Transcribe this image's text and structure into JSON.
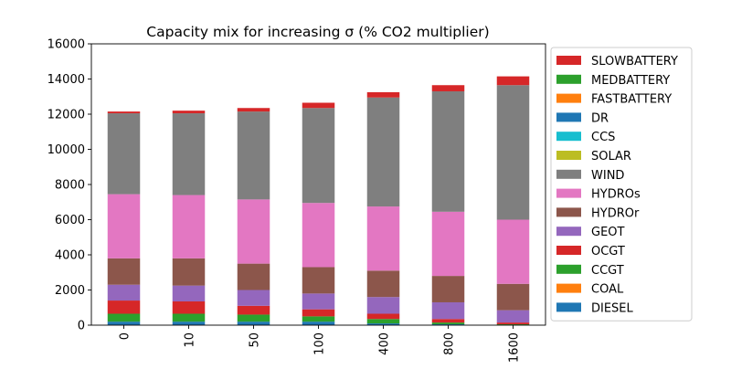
{
  "chart_data": {
    "type": "bar",
    "stacked": true,
    "title": "Capacity mix for increasing σ (% CO2 multiplier)",
    "xlabel": "",
    "ylabel": "",
    "categories": [
      "0",
      "10",
      "50",
      "100",
      "400",
      "800",
      "1600"
    ],
    "x_tick_rotation": "vertical",
    "ylim": [
      0,
      16000
    ],
    "yticks": [
      0,
      2000,
      4000,
      6000,
      8000,
      10000,
      12000,
      14000,
      16000
    ],
    "grid": false,
    "legend_position": "outside-right",
    "series": [
      {
        "name": "DIESEL",
        "color": "#1f77b4",
        "values": [
          200,
          200,
          200,
          200,
          100,
          50,
          0
        ]
      },
      {
        "name": "COAL",
        "color": "#ff7f0e",
        "values": [
          0,
          0,
          0,
          0,
          0,
          0,
          0
        ]
      },
      {
        "name": "CCGT",
        "color": "#2ca02c",
        "values": [
          450,
          450,
          400,
          300,
          250,
          100,
          50
        ]
      },
      {
        "name": "OCGT",
        "color": "#d62728",
        "values": [
          750,
          700,
          500,
          400,
          300,
          200,
          100
        ]
      },
      {
        "name": "GEOT",
        "color": "#9467bd",
        "values": [
          900,
          900,
          900,
          900,
          950,
          950,
          700
        ]
      },
      {
        "name": "HYDROr",
        "color": "#8c564b",
        "values": [
          1500,
          1550,
          1500,
          1500,
          1500,
          1500,
          1500
        ]
      },
      {
        "name": "HYDROs",
        "color": "#e377c2",
        "values": [
          3650,
          3600,
          3650,
          3650,
          3650,
          3650,
          3650
        ]
      },
      {
        "name": "WIND",
        "color": "#7f7f7f",
        "values": [
          4600,
          4650,
          5000,
          5400,
          6200,
          6850,
          7650
        ]
      },
      {
        "name": "SOLAR",
        "color": "#bcbd22",
        "values": [
          0,
          0,
          0,
          0,
          0,
          0,
          0
        ]
      },
      {
        "name": "CCS",
        "color": "#17becf",
        "values": [
          0,
          0,
          0,
          0,
          0,
          0,
          0
        ]
      },
      {
        "name": "DR",
        "color": "#1f77b4",
        "values": [
          0,
          0,
          0,
          0,
          0,
          0,
          0
        ]
      },
      {
        "name": "FASTBATTERY",
        "color": "#ff7f0e",
        "values": [
          0,
          0,
          0,
          0,
          0,
          0,
          0
        ]
      },
      {
        "name": "MEDBATTERY",
        "color": "#2ca02c",
        "values": [
          0,
          0,
          0,
          0,
          0,
          0,
          0
        ]
      },
      {
        "name": "SLOWBATTERY",
        "color": "#d62728",
        "values": [
          100,
          150,
          200,
          300,
          300,
          350,
          500
        ]
      }
    ]
  }
}
